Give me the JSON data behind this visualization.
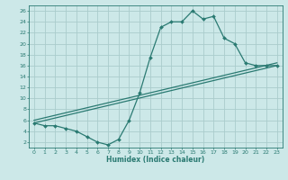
{
  "title": "",
  "xlabel": "Humidex (Indice chaleur)",
  "ylabel": "",
  "bg_color": "#cce8e8",
  "grid_color": "#aacccc",
  "line_color": "#2a7a72",
  "xlim": [
    -0.5,
    23.5
  ],
  "ylim": [
    1,
    27
  ],
  "xticks": [
    0,
    1,
    2,
    3,
    4,
    5,
    6,
    7,
    8,
    9,
    10,
    11,
    12,
    13,
    14,
    15,
    16,
    17,
    18,
    19,
    20,
    21,
    22,
    23
  ],
  "yticks": [
    2,
    4,
    6,
    8,
    10,
    12,
    14,
    16,
    18,
    20,
    22,
    24,
    26
  ],
  "line1_x": [
    0,
    1,
    2,
    3,
    4,
    5,
    6,
    7,
    8,
    9,
    10,
    11,
    12,
    13,
    14,
    15,
    16,
    17,
    18,
    19,
    20,
    21,
    22,
    23
  ],
  "line1_y": [
    5.5,
    5.0,
    5.0,
    4.5,
    4.0,
    3.0,
    2.0,
    1.5,
    2.5,
    6.0,
    11.0,
    17.5,
    23.0,
    24.0,
    24.0,
    26.0,
    24.5,
    25.0,
    21.0,
    20.0,
    16.5,
    16.0,
    16.0,
    16.0
  ],
  "line2_x": [
    0,
    23
  ],
  "line2_y": [
    6.0,
    16.5
  ],
  "line3_x": [
    0,
    23
  ],
  "line3_y": [
    5.5,
    16.0
  ],
  "marker": "D",
  "marker_size": 2.0,
  "line_width": 0.9
}
